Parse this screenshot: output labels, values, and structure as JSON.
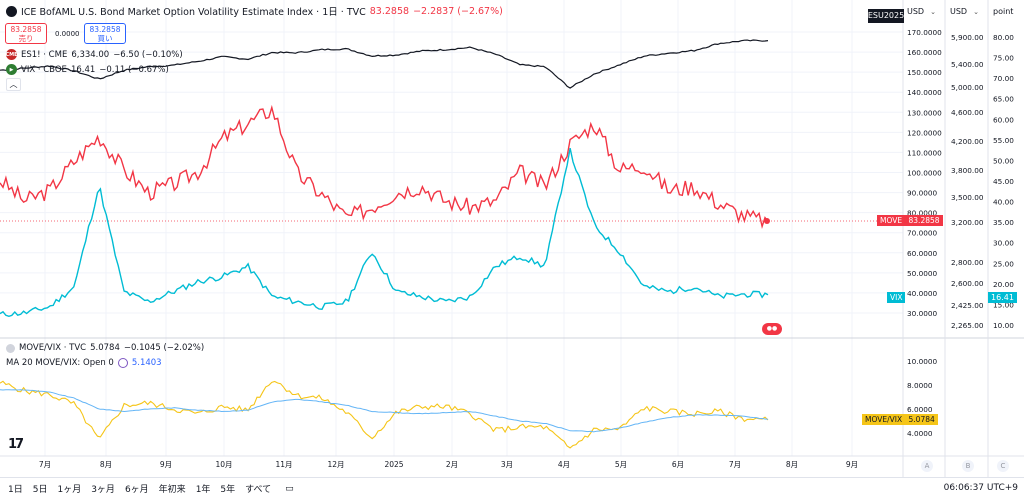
{
  "main_legend": {
    "title": "ICE BofAML U.S. Bond Market Option Volatility Estimate Index · 1日 · TVC",
    "value": "83.2858",
    "change": "−2.2837 (−2.67%)"
  },
  "trade": {
    "sell_price": "83.2858",
    "sell_label": "売り",
    "spread": "0.0000",
    "buy_price": "83.2858",
    "buy_label": "買い"
  },
  "overlays": [
    {
      "title": "ES1! · CME",
      "value": "6,334.00",
      "change": "−6.50 (−0.10%)",
      "badge": "CME"
    },
    {
      "title": "VIX · CBOE",
      "value": "16.41",
      "change": "−0.11 (−0.67%)",
      "badge": "▶"
    }
  ],
  "lower_pane": {
    "legend1_title": "MOVE/VIX · TVC",
    "legend1_value": "5.0784",
    "legend1_change": "−0.1045 (−2.02%)",
    "legend2_title": "MA 20 MOVE/VIX: Open 0",
    "legend2_value": "5.1403"
  },
  "axis_headers": {
    "symbol_box": "ESU2025",
    "usd1": "USD",
    "usd2": "USD",
    "point": "point"
  },
  "price_tags": {
    "move_label": "MOVE",
    "move_value": "83.2858",
    "vix_label": "VIX",
    "vix_value": "16.41",
    "ratio_label": "MOVE/VIX",
    "ratio_value": "5.0784"
  },
  "axes": {
    "move_ticks": [
      "170.0000",
      "160.0000",
      "150.0000",
      "140.0000",
      "130.0000",
      "120.0000",
      "110.0000",
      "100.0000",
      "90.0000",
      "80.0000",
      "70.0000",
      "60.0000",
      "50.0000",
      "40.0000",
      "30.0000"
    ],
    "es_ticks": [
      "5,900.00",
      "5,400.00",
      "5,000.00",
      "4,600.00",
      "4,200.00",
      "3,800.00",
      "3,500.00",
      "3,200.00",
      "2,800.00",
      "2,600.00",
      "2,425.00",
      "2,265.00"
    ],
    "vix_ticks": [
      "80.00",
      "75.00",
      "70.00",
      "65.00",
      "60.00",
      "55.00",
      "50.00",
      "45.00",
      "40.00",
      "35.00",
      "30.00",
      "25.00",
      "20.00",
      "15.00",
      "10.00"
    ],
    "ratio_ticks": [
      "10.0000",
      "8.0000",
      "6.0000",
      "4.0000"
    ],
    "time_ticks": [
      "7月",
      "8月",
      "9月",
      "10月",
      "11月",
      "12月",
      "2025",
      "2月",
      "3月",
      "4月",
      "5月",
      "6月",
      "7月",
      "8月",
      "9月"
    ]
  },
  "abc_labels": [
    "A",
    "B",
    "C"
  ],
  "bottom_bar": {
    "timeframes": [
      "1日",
      "5日",
      "1ヶ月",
      "3ヶ月",
      "6ヶ月",
      "年初来",
      "1年",
      "5年",
      "すべて"
    ],
    "clock": "06:06:37 UTC+9"
  },
  "colors": {
    "move": "#f23645",
    "vix": "#00bcd4",
    "es": "#131722",
    "ratio": "#f5c518",
    "ma": "#64b5f6"
  },
  "chart_data": {
    "type": "line",
    "x": [
      "2024-06-20",
      "2024-07-01",
      "2024-07-15",
      "2024-08-01",
      "2024-08-05",
      "2024-08-15",
      "2024-09-01",
      "2024-09-15",
      "2024-10-01",
      "2024-10-15",
      "2024-11-01",
      "2024-11-06",
      "2024-11-15",
      "2024-12-01",
      "2024-12-10",
      "2024-12-18",
      "2025-01-01",
      "2025-01-15",
      "2025-02-01",
      "2025-02-15",
      "2025-03-01",
      "2025-03-15",
      "2025-04-01",
      "2025-04-08",
      "2025-04-15",
      "2025-05-01",
      "2025-05-15",
      "2025-06-01",
      "2025-06-15",
      "2025-07-01",
      "2025-07-15",
      "2025-07-24"
    ],
    "series": [
      {
        "name": "MOVE",
        "values": [
          103,
          93,
          98,
          112,
          124,
          108,
          97,
          101,
          107,
          123,
          130,
          137,
          106,
          96,
          85,
          90,
          97,
          100,
          93,
          90,
          93,
          107,
          100,
          120,
          130,
          108,
          110,
          98,
          100,
          92,
          86,
          83.29
        ]
      },
      {
        "name": "VIX",
        "values": [
          12.5,
          12.8,
          14,
          18,
          38,
          17,
          15,
          17,
          19,
          20,
          22,
          16,
          15,
          14,
          15,
          25,
          17,
          16,
          15,
          16,
          22,
          24,
          22,
          45,
          30,
          25,
          18,
          17,
          18,
          16,
          16.5,
          16.41
        ]
      },
      {
        "name": "ES1!",
        "values": [
          5500,
          5560,
          5620,
          5480,
          5250,
          5500,
          5600,
          5640,
          5750,
          5880,
          5810,
          6000,
          5990,
          6080,
          6100,
          5900,
          5930,
          6040,
          6080,
          6140,
          5950,
          5650,
          5600,
          5000,
          5400,
          5650,
          5900,
          5980,
          6050,
          6250,
          6330,
          6334
        ]
      },
      {
        "name": "MOVE/VIX",
        "values": [
          8.2,
          7.5,
          7.2,
          6.4,
          3.4,
          6.3,
          6.5,
          6,
          5.6,
          6.2,
          5.9,
          8.5,
          7.1,
          6.9,
          5.7,
          3.6,
          5.7,
          6.2,
          6.2,
          5.6,
          4.2,
          4.5,
          4.5,
          2.7,
          4.3,
          4.3,
          6.1,
          5.8,
          5.6,
          5.8,
          5.2,
          5.08
        ]
      },
      {
        "name": "MA 20 MOVE/VIX",
        "values": [
          7.6,
          7.6,
          7.4,
          6.9,
          6.0,
          5.8,
          6.0,
          6.1,
          5.9,
          5.8,
          5.9,
          6.6,
          6.8,
          6.6,
          6.3,
          5.8,
          5.7,
          5.6,
          5.7,
          5.8,
          5.4,
          5.0,
          4.8,
          4.2,
          4.1,
          4.4,
          4.9,
          5.3,
          5.5,
          5.5,
          5.4,
          5.14
        ]
      }
    ],
    "ylim_move": [
      25,
      175
    ],
    "ylim_ratio": [
      2.5,
      11
    ],
    "grid": true
  }
}
